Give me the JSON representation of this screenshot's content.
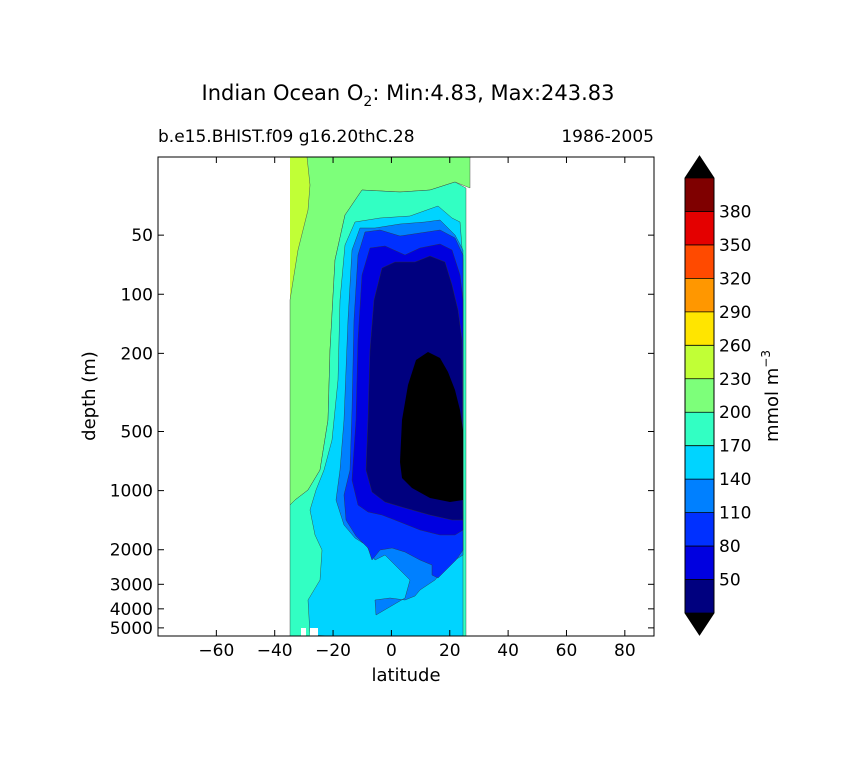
{
  "title": {
    "prefix": "Indian Ocean O",
    "subscript": "2",
    "suffix": ": Min:4.83, Max:243.83"
  },
  "subtitle_left": "b.e15.BHIST.f09 g16.20thC.28",
  "subtitle_right": "1986-2005",
  "chart_data": {
    "type": "heatmap",
    "subtype": "filled-contour",
    "xlabel": "latitude",
    "ylabel": "depth (m)",
    "xlim": [
      -80,
      90
    ],
    "x_ticks": [
      -60,
      -40,
      -20,
      0,
      20,
      40,
      60,
      80
    ],
    "x_tick_labels": [
      "−60",
      "−40",
      "−20",
      "0",
      "20",
      "40",
      "60",
      "80"
    ],
    "ylim": [
      20,
      5500
    ],
    "y_scale": "nonlinear (approximately logarithmic), depth increasing downward",
    "y_ticks": [
      50,
      100,
      200,
      500,
      1000,
      2000,
      3000,
      4000,
      5000
    ],
    "y_tick_labels": [
      "50",
      "100",
      "200",
      "500",
      "1000",
      "2000",
      "3000",
      "4000",
      "5000"
    ],
    "data_extent_lat": [
      -34,
      27
    ],
    "colorbar": {
      "label_base": "mmol m",
      "label_exponent": "−3",
      "levels": [
        20,
        50,
        80,
        110,
        140,
        170,
        200,
        230,
        260,
        290,
        320,
        350,
        380,
        410
      ],
      "tick_labels": [
        "50",
        "80",
        "110",
        "140",
        "170",
        "200",
        "230",
        "260",
        "290",
        "320",
        "350",
        "380"
      ],
      "colors": [
        "#00007f",
        "#0000e0",
        "#0030ff",
        "#0080ff",
        "#00d4ff",
        "#32ffc3",
        "#7dff7a",
        "#c1ff36",
        "#ffe500",
        "#ff9700",
        "#ff4a00",
        "#e40000",
        "#7f0000"
      ],
      "under_color": "#000000",
      "over_color": "#000000",
      "extend": "both"
    },
    "o2_min": 4.83,
    "o2_max": 243.83
  }
}
